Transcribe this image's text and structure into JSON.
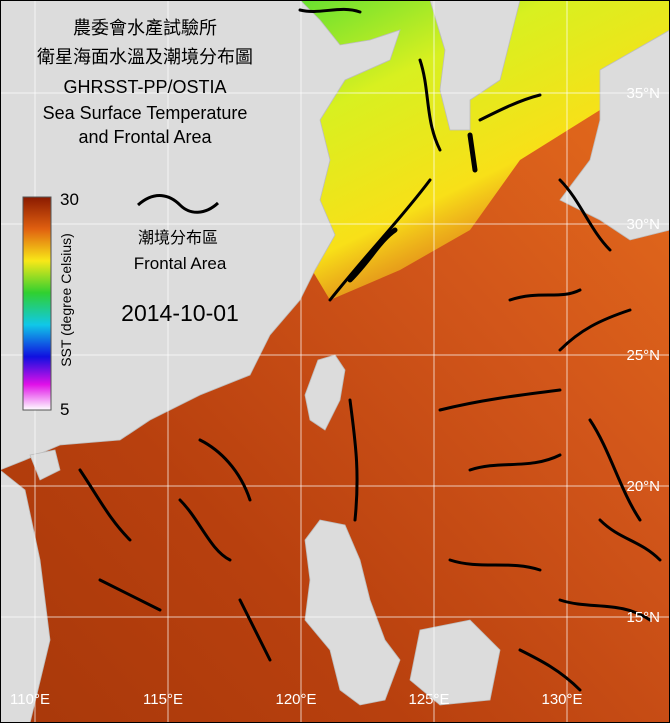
{
  "map": {
    "title_lines": [
      "農委會水產試驗所",
      "衛星海面水溫及潮境分布圖",
      "GHRSST-PP/OSTIA",
      "Sea Surface Temperature",
      "and Frontal Area"
    ],
    "legend": {
      "lines": [
        "潮境分布區",
        "Frontal Area"
      ]
    },
    "date": "2014-10-01",
    "colorbar": {
      "label": "SST (degree Celsius)",
      "max": 30,
      "min": 5
    },
    "lat_labels": [
      "35°N",
      "30°N",
      "25°N",
      "20°N",
      "15°N"
    ],
    "lon_labels": [
      "110°E",
      "115°E",
      "120°E",
      "125°E",
      "130°E"
    ]
  }
}
